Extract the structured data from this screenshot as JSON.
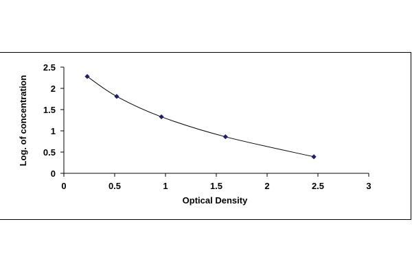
{
  "chart_data": {
    "type": "scatter",
    "xlabel": "Optical Density",
    "ylabel": "Log. of concentration",
    "xlim": [
      0,
      3
    ],
    "ylim": [
      0,
      2.5
    ],
    "x_ticks": [
      0,
      0.5,
      1,
      1.5,
      2,
      2.5,
      3
    ],
    "y_ticks": [
      0,
      0.5,
      1,
      1.5,
      2,
      2.5
    ],
    "x_tick_labels": [
      "0",
      "0.5",
      "1",
      "1.5",
      "2",
      "2.5",
      "3"
    ],
    "y_tick_labels": [
      "0",
      "0.5",
      "1",
      "1.5",
      "2",
      "2.5"
    ],
    "grid": false,
    "legend": "none",
    "trendline": "smooth curve",
    "marker": "diamond",
    "series": [
      {
        "x": [
          0.23,
          0.52,
          0.96,
          1.59,
          2.46
        ],
        "y": [
          2.28,
          1.81,
          1.33,
          0.86,
          0.39
        ],
        "color": "#1f1f6e"
      }
    ]
  }
}
